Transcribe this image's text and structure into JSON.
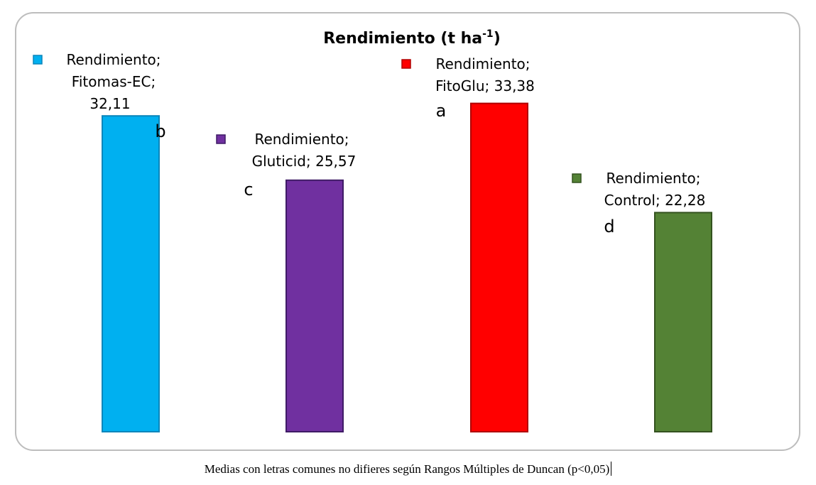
{
  "chart_data": {
    "type": "bar",
    "title": "Rendimiento (t ha-1)",
    "title_main": "Rendimiento (t ha",
    "title_sup": "-1",
    "title_close": ")",
    "xlabel": "",
    "ylabel": "",
    "ylim": [
      0,
      34
    ],
    "grid": false,
    "legend": "none",
    "series_name": "Rendimiento",
    "categories": [
      "Fitomas-EC",
      "Gluticid",
      "FitoGlu",
      "Control"
    ],
    "values": [
      32.11,
      25.57,
      33.38,
      22.28
    ],
    "colors": [
      "#00b0f0",
      "#7030a0",
      "#ff0000",
      "#548235"
    ],
    "stroke_colors": [
      "#0b86bb",
      "#3f1b66",
      "#b00000",
      "#34521f"
    ],
    "letters": [
      "b",
      "c",
      "a",
      "d"
    ],
    "data_labels": [
      [
        "Rendimiento;",
        "Fitomas-EC;",
        "32,11"
      ],
      [
        "Rendimiento;",
        "Gluticid; 25,57"
      ],
      [
        "Rendimiento;",
        "FitoGlu; 33,38"
      ],
      [
        "Rendimiento;",
        "Control; 22,28"
      ]
    ]
  },
  "caption": "Medias con letras comunes no difieres según Rangos Múltiples de Duncan (p<0,05)"
}
